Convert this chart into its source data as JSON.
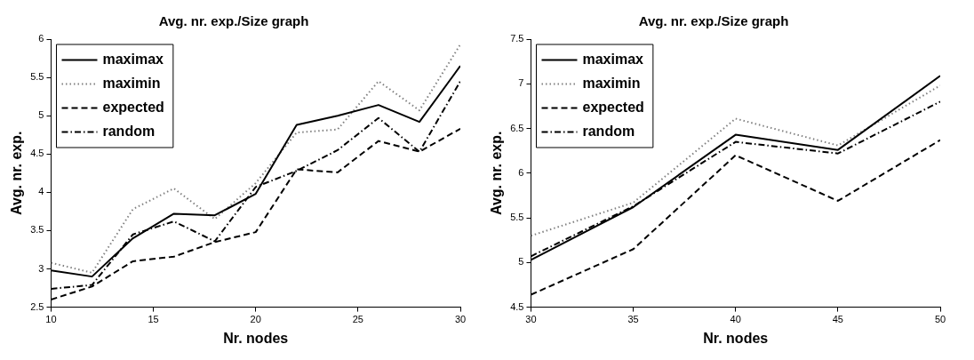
{
  "chart_data": [
    {
      "type": "line",
      "title": "Avg. nr. exp./Size graph",
      "xlabel": "Nr. nodes",
      "ylabel": "Avg. nr. exp.",
      "x": [
        10,
        12,
        14,
        16,
        18,
        20,
        22,
        24,
        26,
        28,
        30
      ],
      "xlim": [
        10,
        30
      ],
      "xticks": [
        10,
        15,
        20,
        25,
        30
      ],
      "ylim": [
        2.5,
        6
      ],
      "yticks": [
        2.5,
        3,
        3.5,
        4,
        4.5,
        5,
        5.5,
        6
      ],
      "grid": false,
      "legend": "top left",
      "marker": "none",
      "series": [
        {
          "name": "maximax",
          "color": "#000000",
          "line_style": "solid",
          "values": [
            2.98,
            2.9,
            3.4,
            3.72,
            3.7,
            3.98,
            4.88,
            5.0,
            5.14,
            4.92,
            5.65
          ]
        },
        {
          "name": "maximin",
          "color": "#808080",
          "line_style": "dotted",
          "values": [
            3.08,
            2.95,
            3.78,
            4.05,
            3.65,
            4.12,
            4.78,
            4.82,
            5.45,
            5.07,
            5.93
          ]
        },
        {
          "name": "expected",
          "color": "#000000",
          "line_style": "dashed",
          "values": [
            2.6,
            2.77,
            3.1,
            3.16,
            3.35,
            3.48,
            4.3,
            4.26,
            4.67,
            4.53,
            4.83
          ]
        },
        {
          "name": "random",
          "color": "#000000",
          "line_style": "dashdot",
          "values": [
            2.74,
            2.79,
            3.45,
            3.62,
            3.36,
            4.07,
            4.28,
            4.55,
            4.97,
            4.53,
            5.45
          ]
        }
      ]
    },
    {
      "type": "line",
      "title": "Avg. nr. exp./Size graph",
      "xlabel": "Nr. nodes",
      "ylabel": "Avg. nr. exp.",
      "x": [
        30,
        35,
        40,
        45,
        50
      ],
      "xlim": [
        30,
        50
      ],
      "xticks": [
        30,
        35,
        40,
        45,
        50
      ],
      "ylim": [
        4.5,
        7.5
      ],
      "yticks": [
        4.5,
        5,
        5.5,
        6,
        6.5,
        7,
        7.5
      ],
      "grid": false,
      "legend": "top left",
      "marker": "none",
      "series": [
        {
          "name": "maximax",
          "color": "#000000",
          "line_style": "solid",
          "values": [
            5.03,
            5.62,
            6.43,
            6.26,
            7.09
          ]
        },
        {
          "name": "maximin",
          "color": "#808080",
          "line_style": "dotted",
          "values": [
            5.3,
            5.67,
            6.61,
            6.31,
            6.98
          ]
        },
        {
          "name": "expected",
          "color": "#000000",
          "line_style": "dashed",
          "values": [
            4.64,
            5.15,
            6.2,
            5.69,
            6.37
          ]
        },
        {
          "name": "random",
          "color": "#000000",
          "line_style": "dashdot",
          "values": [
            5.07,
            5.63,
            6.35,
            6.22,
            6.8
          ]
        }
      ]
    }
  ]
}
